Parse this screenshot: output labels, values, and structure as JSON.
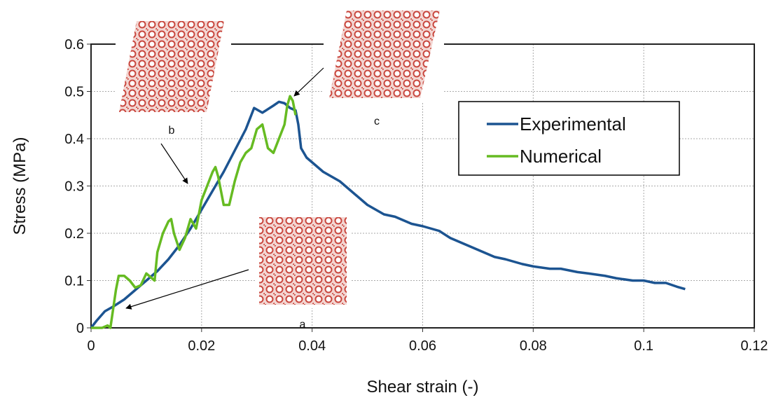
{
  "chart_data": {
    "type": "line",
    "x_label": "Shear strain (-)",
    "y_label": "Stress (MPa)",
    "xlim": [
      0,
      0.12
    ],
    "ylim": [
      0,
      0.6
    ],
    "xticks": [
      0,
      0.02,
      0.04,
      0.06,
      0.08,
      0.1,
      0.12
    ],
    "yticks": [
      0,
      0.1,
      0.2,
      0.3,
      0.4,
      0.5,
      0.6
    ],
    "grid": true,
    "legend_position": "upper right",
    "annotations": [
      "a",
      "b",
      "c"
    ],
    "series": [
      {
        "name": "Experimental",
        "color": "#1c5491",
        "x": [
          0,
          0.001,
          0.0025,
          0.004,
          0.006,
          0.008,
          0.01,
          0.012,
          0.014,
          0.016,
          0.018,
          0.02,
          0.022,
          0.024,
          0.026,
          0.028,
          0.0295,
          0.031,
          0.033,
          0.034,
          0.035,
          0.036,
          0.037,
          0.0375,
          0.038,
          0.039,
          0.04,
          0.042,
          0.045,
          0.048,
          0.05,
          0.053,
          0.055,
          0.058,
          0.06,
          0.063,
          0.065,
          0.068,
          0.07,
          0.073,
          0.075,
          0.078,
          0.08,
          0.083,
          0.085,
          0.088,
          0.09,
          0.093,
          0.095,
          0.098,
          0.1,
          0.102,
          0.104,
          0.106,
          0.1075
        ],
        "values": [
          0,
          0.015,
          0.035,
          0.045,
          0.06,
          0.08,
          0.1,
          0.12,
          0.145,
          0.175,
          0.21,
          0.25,
          0.29,
          0.33,
          0.375,
          0.42,
          0.465,
          0.455,
          0.47,
          0.478,
          0.475,
          0.465,
          0.46,
          0.43,
          0.38,
          0.36,
          0.35,
          0.33,
          0.31,
          0.28,
          0.26,
          0.24,
          0.235,
          0.22,
          0.215,
          0.205,
          0.19,
          0.175,
          0.165,
          0.15,
          0.145,
          0.135,
          0.13,
          0.125,
          0.125,
          0.118,
          0.115,
          0.11,
          0.105,
          0.1,
          0.1,
          0.095,
          0.095,
          0.087,
          0.082
        ]
      },
      {
        "name": "Numerical",
        "color": "#66bb22",
        "x": [
          0,
          0.002,
          0.003,
          0.0035,
          0.004,
          0.0045,
          0.005,
          0.006,
          0.007,
          0.008,
          0.009,
          0.01,
          0.011,
          0.0115,
          0.012,
          0.013,
          0.014,
          0.0145,
          0.015,
          0.016,
          0.017,
          0.018,
          0.019,
          0.02,
          0.021,
          0.022,
          0.0225,
          0.023,
          0.024,
          0.025,
          0.026,
          0.027,
          0.028,
          0.029,
          0.03,
          0.031,
          0.032,
          0.033,
          0.034,
          0.035,
          0.0355,
          0.036,
          0.0365,
          0.037
        ],
        "values": [
          0,
          0,
          0.005,
          0,
          0.04,
          0.08,
          0.11,
          0.11,
          0.1,
          0.085,
          0.09,
          0.115,
          0.105,
          0.1,
          0.16,
          0.2,
          0.225,
          0.23,
          0.2,
          0.165,
          0.19,
          0.23,
          0.21,
          0.27,
          0.3,
          0.33,
          0.34,
          0.32,
          0.26,
          0.26,
          0.31,
          0.35,
          0.37,
          0.38,
          0.42,
          0.43,
          0.38,
          0.37,
          0.4,
          0.43,
          0.47,
          0.49,
          0.48,
          0.45
        ]
      }
    ]
  }
}
